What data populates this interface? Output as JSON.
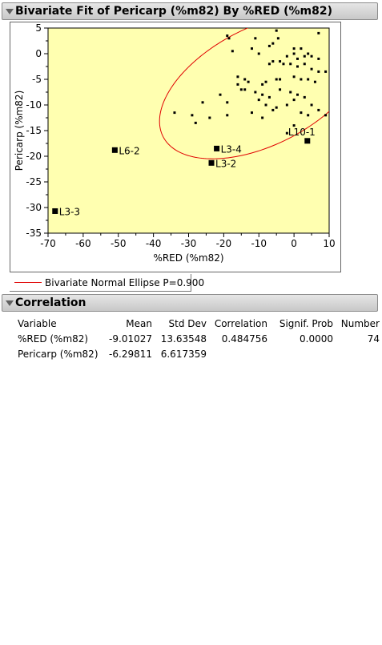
{
  "header1": {
    "title": "Bivariate Fit of Pericarp (%m82) By %RED (%m82)"
  },
  "chart_data": {
    "type": "scatter",
    "xlabel": "%RED (%m82)",
    "ylabel": "Pericarp (%m82)",
    "xlim": [
      -70,
      10
    ],
    "ylim": [
      -35,
      5
    ],
    "xticks": [
      -70,
      -60,
      -50,
      -40,
      -30,
      -20,
      -10,
      0,
      10
    ],
    "yticks": [
      5,
      0,
      -5,
      -10,
      -15,
      -20,
      -25,
      -30,
      -35
    ],
    "plot_background": "#ffffb0",
    "grid": false,
    "ellipse": {
      "label": "Bivariate Normal Ellipse P=0.900",
      "p": 0.9,
      "color": "#e00000",
      "mean": [
        -9.01027,
        -6.29811
      ],
      "sd": [
        13.63548,
        6.617359
      ],
      "r": 0.484756
    },
    "points": [
      [
        -5,
        4.5
      ],
      [
        -4.5,
        3
      ],
      [
        -11,
        3
      ],
      [
        -19,
        3.5
      ],
      [
        -18.5,
        3
      ],
      [
        -17.5,
        0.5
      ],
      [
        -12,
        1
      ],
      [
        -10,
        0
      ],
      [
        -7,
        1.5
      ],
      [
        -6,
        2
      ],
      [
        0,
        1
      ],
      [
        2,
        1
      ],
      [
        7,
        4
      ],
      [
        -2,
        -0.5
      ],
      [
        0,
        0
      ],
      [
        1,
        -1
      ],
      [
        3,
        -0.5
      ],
      [
        4,
        0
      ],
      [
        5,
        -0.5
      ],
      [
        7,
        -1
      ],
      [
        -4,
        -1.5
      ],
      [
        -6,
        -1.5
      ],
      [
        -7,
        -2
      ],
      [
        -3,
        -2
      ],
      [
        -1,
        -2
      ],
      [
        1,
        -2.5
      ],
      [
        3,
        -2
      ],
      [
        5,
        -3
      ],
      [
        7,
        -3.5
      ],
      [
        9,
        -3.5
      ],
      [
        -16,
        -4.5
      ],
      [
        -14,
        -5
      ],
      [
        -13,
        -5.5
      ],
      [
        -16,
        -6
      ],
      [
        -9,
        -6
      ],
      [
        -8,
        -5.5
      ],
      [
        -5,
        -5
      ],
      [
        -4,
        -5
      ],
      [
        0,
        -4.5
      ],
      [
        2,
        -5
      ],
      [
        4,
        -5
      ],
      [
        6,
        -5.5
      ],
      [
        -15,
        -7
      ],
      [
        -14,
        -7
      ],
      [
        -11,
        -7.5
      ],
      [
        -9,
        -8
      ],
      [
        -7,
        -8.5
      ],
      [
        -4,
        -7
      ],
      [
        -1,
        -7.5
      ],
      [
        1,
        -8
      ],
      [
        3,
        -8.5
      ],
      [
        -21,
        -8
      ],
      [
        -26,
        -9.5
      ],
      [
        -19,
        -9.5
      ],
      [
        -10,
        -9
      ],
      [
        -8,
        -10
      ],
      [
        -5,
        -10.5
      ],
      [
        -2,
        -10
      ],
      [
        0,
        -9
      ],
      [
        5,
        -10
      ],
      [
        7,
        -11
      ],
      [
        -34,
        -11.5
      ],
      [
        -29,
        -12
      ],
      [
        -24,
        -12.5
      ],
      [
        -19,
        -12
      ],
      [
        -12,
        -11.5
      ],
      [
        -6,
        -11
      ],
      [
        2,
        -11.5
      ],
      [
        4,
        -12
      ],
      [
        9,
        -12
      ],
      [
        -28,
        -13.5
      ],
      [
        -9,
        -12.5
      ],
      [
        0,
        -14
      ],
      [
        -2,
        -15.5
      ]
    ],
    "labeled_points": [
      {
        "label": "L3-3",
        "x": -68,
        "y": -30.7
      },
      {
        "label": "L6-2",
        "x": -51,
        "y": -18.8
      },
      {
        "label": "L3-4",
        "x": -22,
        "y": -18.5
      },
      {
        "label": "L3-2",
        "x": -23.5,
        "y": -21.3
      },
      {
        "label": "L10-1",
        "x": 3.8,
        "y": -17
      }
    ]
  },
  "header2": {
    "title": "Correlation"
  },
  "correlation": {
    "headers": [
      "Variable",
      "Mean",
      "Std Dev",
      "Correlation",
      "Signif. Prob",
      "Number"
    ],
    "rows": [
      [
        "%RED (%m82)",
        "-9.01027",
        "13.63548",
        "0.484756",
        "0.0000",
        "74"
      ],
      [
        "Pericarp (%m82)",
        "-6.29811",
        "6.617359",
        "",
        "",
        ""
      ]
    ]
  }
}
